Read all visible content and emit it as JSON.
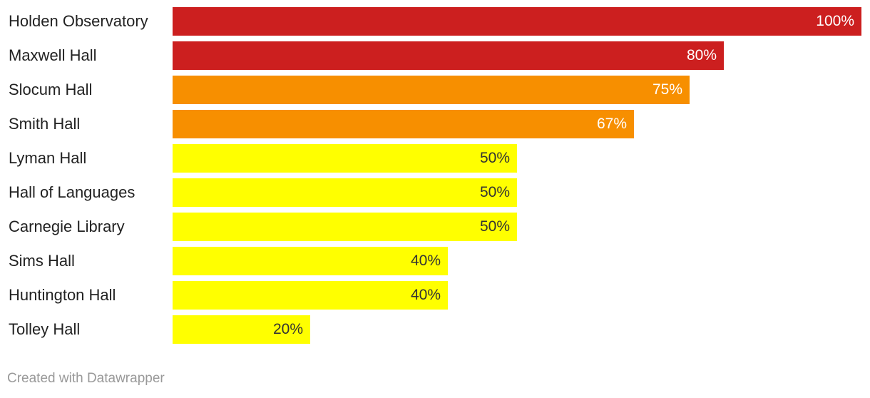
{
  "chart_data": {
    "type": "bar",
    "orientation": "horizontal",
    "categories": [
      "Holden Observatory",
      "Maxwell Hall",
      "Slocum Hall",
      "Smith Hall",
      "Lyman Hall",
      "Hall of Languages",
      "Carnegie Library",
      "Sims Hall",
      "Huntington Hall",
      "Tolley Hall"
    ],
    "values": [
      100,
      80,
      75,
      67,
      50,
      50,
      50,
      40,
      40,
      20
    ],
    "value_labels": [
      "100%",
      "80%",
      "75%",
      "67%",
      "50%",
      "50%",
      "50%",
      "40%",
      "40%",
      "20%"
    ],
    "xlim": [
      0,
      100
    ],
    "grid": false,
    "colors": {
      "high": "#cc1f1f",
      "mid": "#f78f00",
      "low": "#ffff00",
      "label_on_dark": "#ffffff",
      "label_on_light": "#333333"
    }
  },
  "credit": "Created with Datawrapper"
}
